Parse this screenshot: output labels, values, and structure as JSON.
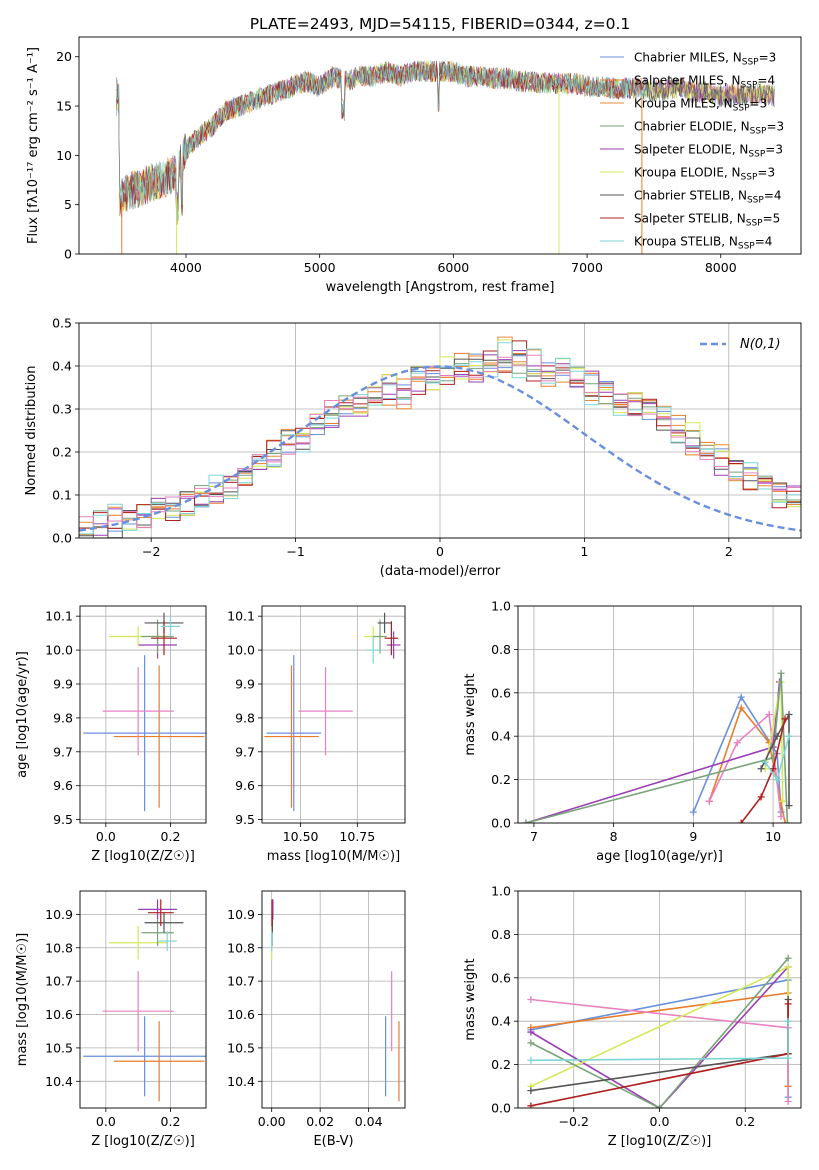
{
  "figure_title": "PLATE=2493, MJD=54115, FIBERID=0344, z=0.1",
  "colors": [
    "#6a8fdc",
    "#e87d2a",
    "#e8893a",
    "#7aa37a",
    "#9b3fb5",
    "#d4e85a",
    "#555555",
    "#b02020",
    "#7dd6d6",
    "#e882c0"
  ],
  "chart_data": [
    {
      "id": "spectrum",
      "type": "line",
      "xlabel": "wavelength [Angstrom, rest frame]",
      "ylabel": "Flux [fλ10⁻¹⁷ erg cm⁻² s⁻¹ A⁻¹]",
      "xlim": [
        3200,
        8600
      ],
      "ylim": [
        0,
        22
      ],
      "xticks": [
        4000,
        5000,
        6000,
        7000,
        8000
      ],
      "yticks": [
        0,
        5,
        10,
        15,
        20
      ],
      "legend_position": "right",
      "series": [
        {
          "name": "Chabrier MILES, N_SSP=3",
          "color": "#6a8fdc"
        },
        {
          "name": "Salpeter MILES, N_SSP=4",
          "color": "#e87d2a"
        },
        {
          "name": "Kroupa MILES, N_SSP=3",
          "color": "#e8893a"
        },
        {
          "name": "Chabrier ELODIE, N_SSP=3",
          "color": "#7aa37a"
        },
        {
          "name": "Salpeter ELODIE, N_SSP=3",
          "color": "#9b3fb5"
        },
        {
          "name": "Kroupa ELODIE, N_SSP=3",
          "color": "#d4e85a"
        },
        {
          "name": "Chabrier STELIB, N_SSP=4",
          "color": "#555555"
        },
        {
          "name": "Salpeter STELIB, N_SSP=5",
          "color": "#b02020"
        },
        {
          "name": "Kroupa STELIB, N_SSP=4",
          "color": "#7dd6d6"
        }
      ],
      "data_envelope": {
        "x": [
          3500,
          3600,
          3700,
          3800,
          3900,
          4000,
          4100,
          4200,
          4300,
          4400,
          4500,
          4600,
          4700,
          4800,
          4900,
          5000,
          5100,
          5200,
          5300,
          5400,
          5500,
          5600,
          5700,
          5800,
          5900,
          6000,
          6100,
          6200,
          6300,
          6400,
          6500,
          6600,
          6700,
          6800,
          6900,
          7000,
          7100,
          7200,
          7300,
          7400,
          7500,
          7600,
          7700,
          7800,
          7900,
          8000,
          8100,
          8200,
          8300,
          8400
        ],
        "y": [
          5.5,
          6.5,
          7,
          7.5,
          8,
          10.5,
          12,
          13,
          14.5,
          15,
          15.5,
          16,
          16.5,
          17,
          17.5,
          17,
          18,
          17.5,
          18,
          18,
          18.5,
          18,
          18.5,
          18.5,
          18.5,
          18.5,
          18,
          18,
          17.8,
          17.8,
          17.5,
          17.5,
          17.3,
          17.3,
          17.3,
          17,
          17,
          16.8,
          16.8,
          16.8,
          16.5,
          16.7,
          17,
          16.3,
          16.5,
          16,
          16.2,
          16,
          16.3,
          16
        ]
      }
    },
    {
      "id": "residuals",
      "type": "histogram",
      "xlabel": "(data-model)/error",
      "ylabel": "Normed distribution",
      "xlim": [
        -2.5,
        2.5
      ],
      "ylim": [
        0,
        0.5
      ],
      "xticks": [
        -2,
        -1,
        0,
        1,
        2
      ],
      "yticks": [
        0.0,
        0.1,
        0.2,
        0.3,
        0.4,
        0.5
      ],
      "legend": [
        {
          "name": "N(0,1)",
          "color": "#6a8fdc",
          "style": "dashed"
        }
      ],
      "bins": {
        "start": -2.5,
        "width": 0.1
      },
      "series_values": [
        [
          0.03,
          0.04,
          0.03,
          0.04,
          0.05,
          0.06,
          0.07,
          0.08,
          0.1,
          0.11,
          0.12,
          0.15,
          0.18,
          0.19,
          0.22,
          0.23,
          0.27,
          0.29,
          0.31,
          0.32,
          0.33,
          0.35,
          0.34,
          0.37,
          0.38,
          0.39,
          0.39,
          0.4,
          0.41,
          0.42,
          0.41,
          0.4,
          0.39,
          0.4,
          0.37,
          0.35,
          0.34,
          0.32,
          0.31,
          0.3,
          0.28,
          0.25,
          0.23,
          0.21,
          0.18,
          0.16,
          0.14,
          0.12,
          0.1,
          0.09
        ],
        [
          0.02,
          0.03,
          0.04,
          0.04,
          0.05,
          0.07,
          0.07,
          0.09,
          0.09,
          0.1,
          0.13,
          0.15,
          0.17,
          0.2,
          0.21,
          0.24,
          0.26,
          0.28,
          0.3,
          0.31,
          0.34,
          0.33,
          0.35,
          0.36,
          0.39,
          0.38,
          0.41,
          0.39,
          0.42,
          0.4,
          0.43,
          0.39,
          0.38,
          0.41,
          0.36,
          0.36,
          0.33,
          0.33,
          0.29,
          0.31,
          0.27,
          0.26,
          0.22,
          0.22,
          0.17,
          0.17,
          0.13,
          0.13,
          0.09,
          0.1
        ],
        [
          0.03,
          0.03,
          0.05,
          0.04,
          0.05,
          0.06,
          0.08,
          0.08,
          0.1,
          0.12,
          0.12,
          0.14,
          0.18,
          0.18,
          0.23,
          0.22,
          0.28,
          0.28,
          0.32,
          0.31,
          0.33,
          0.36,
          0.33,
          0.38,
          0.37,
          0.4,
          0.38,
          0.41,
          0.4,
          0.44,
          0.4,
          0.41,
          0.38,
          0.39,
          0.38,
          0.34,
          0.35,
          0.31,
          0.32,
          0.29,
          0.29,
          0.24,
          0.24,
          0.2,
          0.19,
          0.15,
          0.15,
          0.11,
          0.11,
          0.08
        ]
      ],
      "normal_curve": {
        "mean": 0,
        "sigma": 1
      }
    },
    {
      "id": "age_vs_Z",
      "type": "errorbar",
      "xlabel": "Z [log10(Z/Z☉)]",
      "ylabel": "age  [log10(age/yr)]",
      "xlim": [
        -0.08,
        0.31
      ],
      "ylim": [
        9.49,
        10.13
      ],
      "xticks": [
        0.0,
        0.2
      ],
      "yticks": [
        9.5,
        9.6,
        9.7,
        9.8,
        9.9,
        10.0,
        10.1
      ],
      "points": [
        {
          "x": 0.12,
          "y": 9.755,
          "xerr": 0.19,
          "yerr": 0.23,
          "color": "#6a8fdc"
        },
        {
          "x": 0.165,
          "y": 9.745,
          "xerr": 0.14,
          "yerr": 0.21,
          "color": "#e87d2a"
        },
        {
          "x": 0.1,
          "y": 9.82,
          "xerr": 0.11,
          "yerr": 0.13,
          "color": "#e882c0"
        },
        {
          "x": 0.16,
          "y": 10.015,
          "xerr": 0.06,
          "yerr": 0.04,
          "color": "#9b3fb5"
        },
        {
          "x": 0.1,
          "y": 10.04,
          "xerr": 0.09,
          "yerr": 0.03,
          "color": "#d4e85a"
        },
        {
          "x": 0.16,
          "y": 10.04,
          "xerr": 0.05,
          "yerr": 0.05,
          "color": "#7aa37a"
        },
        {
          "x": 0.18,
          "y": 10.08,
          "xerr": 0.06,
          "yerr": 0.03,
          "color": "#555555"
        },
        {
          "x": 0.18,
          "y": 10.035,
          "xerr": 0.04,
          "yerr": 0.05,
          "color": "#b02020"
        },
        {
          "x": 0.2,
          "y": 10.07,
          "xerr": 0.03,
          "yerr": 0.03,
          "color": "#7dd6d6"
        }
      ]
    },
    {
      "id": "age_vs_mass",
      "type": "errorbar",
      "xlabel": "mass [log10(M/M☉)]",
      "ylabel": "",
      "xlim": [
        10.33,
        10.96
      ],
      "ylim": [
        9.49,
        10.13
      ],
      "xticks": [
        10.5,
        10.75
      ],
      "xtick_labels": [
        "10.50",
        "10.75"
      ],
      "yticks": [
        9.5,
        9.6,
        9.7,
        9.8,
        9.9,
        10.0,
        10.1
      ],
      "points": [
        {
          "x": 10.47,
          "y": 9.755,
          "xerr": 0.12,
          "yerr": 0.23,
          "color": "#6a8fdc"
        },
        {
          "x": 10.46,
          "y": 9.745,
          "xerr": 0.12,
          "yerr": 0.21,
          "color": "#e87d2a"
        },
        {
          "x": 10.61,
          "y": 9.82,
          "xerr": 0.12,
          "yerr": 0.13,
          "color": "#e882c0"
        },
        {
          "x": 10.91,
          "y": 10.015,
          "xerr": 0.03,
          "yerr": 0.04,
          "color": "#9b3fb5"
        },
        {
          "x": 10.82,
          "y": 10.04,
          "xerr": 0.04,
          "yerr": 0.03,
          "color": "#d4e85a"
        },
        {
          "x": 10.85,
          "y": 10.04,
          "xerr": 0.03,
          "yerr": 0.05,
          "color": "#7aa37a"
        },
        {
          "x": 10.87,
          "y": 10.08,
          "xerr": 0.03,
          "yerr": 0.03,
          "color": "#555555"
        },
        {
          "x": 10.9,
          "y": 10.035,
          "xerr": 0.03,
          "yerr": 0.05,
          "color": "#b02020"
        },
        {
          "x": 10.82,
          "y": 10.0,
          "xerr": 0.03,
          "yerr": 0.04,
          "color": "#7dd6d6"
        }
      ]
    },
    {
      "id": "mass_weight_vs_age",
      "type": "line",
      "xlabel": "age  [log10(age/yr)]",
      "ylabel": "mass weight",
      "xlim": [
        6.8,
        10.35
      ],
      "ylim": [
        0,
        1
      ],
      "xticks": [
        7,
        8,
        9,
        10
      ],
      "yticks": [
        0.0,
        0.2,
        0.4,
        0.6,
        0.8,
        1.0
      ],
      "series": [
        {
          "color": "#6a8fdc",
          "x": [
            9.0,
            9.6,
            10.05,
            10.1
          ],
          "y": [
            0.05,
            0.58,
            0.32,
            0.05
          ]
        },
        {
          "color": "#e87d2a",
          "x": [
            9.2,
            9.6,
            9.95,
            10.15
          ],
          "y": [
            0.1,
            0.53,
            0.37,
            0.0
          ]
        },
        {
          "color": "#e882c0",
          "x": [
            9.2,
            9.55,
            9.95,
            10.1
          ],
          "y": [
            0.1,
            0.37,
            0.5,
            0.03
          ]
        },
        {
          "color": "#9b3fb5",
          "x": [
            6.9,
            10.0,
            10.08
          ],
          "y": [
            0.0,
            0.35,
            0.65
          ]
        },
        {
          "color": "#d4e85a",
          "x": [
            9.9,
            10.1,
            10.12
          ],
          "y": [
            0.25,
            0.65,
            0.1
          ]
        },
        {
          "color": "#7aa37a",
          "x": [
            6.9,
            10.0,
            10.1,
            10.18
          ],
          "y": [
            0.0,
            0.3,
            0.69,
            0.0
          ]
        },
        {
          "color": "#555555",
          "x": [
            9.85,
            10.05,
            10.2,
            10.2
          ],
          "y": [
            0.25,
            0.4,
            0.5,
            0.08
          ]
        },
        {
          "color": "#b02020",
          "x": [
            9.6,
            9.85,
            10.0,
            10.15
          ],
          "y": [
            0.0,
            0.12,
            0.25,
            0.48
          ]
        },
        {
          "color": "#7dd6d6",
          "x": [
            9.9,
            10.05,
            10.2
          ],
          "y": [
            0.28,
            0.2,
            0.4
          ]
        }
      ]
    },
    {
      "id": "mass_vs_Z",
      "type": "errorbar",
      "xlabel": "Z [log10(Z/Z☉)]",
      "ylabel": "mass [log10(M/M☉)]",
      "xlim": [
        -0.08,
        0.31
      ],
      "ylim": [
        10.32,
        10.97
      ],
      "xticks": [
        0.0,
        0.2
      ],
      "yticks": [
        10.4,
        10.5,
        10.6,
        10.7,
        10.8,
        10.9
      ],
      "points": [
        {
          "x": 0.12,
          "y": 10.475,
          "xerr": 0.19,
          "yerr": 0.12,
          "color": "#6a8fdc"
        },
        {
          "x": 0.165,
          "y": 10.46,
          "xerr": 0.14,
          "yerr": 0.12,
          "color": "#e87d2a"
        },
        {
          "x": 0.1,
          "y": 10.61,
          "xerr": 0.11,
          "yerr": 0.12,
          "color": "#e882c0"
        },
        {
          "x": 0.16,
          "y": 10.915,
          "xerr": 0.06,
          "yerr": 0.03,
          "color": "#9b3fb5"
        },
        {
          "x": 0.1,
          "y": 10.815,
          "xerr": 0.09,
          "yerr": 0.05,
          "color": "#d4e85a"
        },
        {
          "x": 0.16,
          "y": 10.845,
          "xerr": 0.05,
          "yerr": 0.04,
          "color": "#7aa37a"
        },
        {
          "x": 0.18,
          "y": 10.875,
          "xerr": 0.06,
          "yerr": 0.03,
          "color": "#555555"
        },
        {
          "x": 0.17,
          "y": 10.905,
          "xerr": 0.04,
          "yerr": 0.04,
          "color": "#b02020"
        },
        {
          "x": 0.19,
          "y": 10.82,
          "xerr": 0.03,
          "yerr": 0.03,
          "color": "#7dd6d6"
        }
      ]
    },
    {
      "id": "mass_vs_ebv",
      "type": "errorbar",
      "xlabel": "E(B-V)",
      "ylabel": "",
      "xlim": [
        -0.004,
        0.055
      ],
      "ylim": [
        10.32,
        10.97
      ],
      "xticks": [
        0.0,
        0.02,
        0.04
      ],
      "xtick_labels": [
        "0.00",
        "0.02",
        "0.04"
      ],
      "yticks": [
        10.4,
        10.5,
        10.6,
        10.7,
        10.8,
        10.9
      ],
      "points": [
        {
          "x": 0.047,
          "y": 10.475,
          "xerr": 0,
          "yerr": 0.12,
          "color": "#6a8fdc"
        },
        {
          "x": 0.0525,
          "y": 10.46,
          "xerr": 0,
          "yerr": 0.12,
          "color": "#e87d2a"
        },
        {
          "x": 0.0495,
          "y": 10.61,
          "xerr": 0,
          "yerr": 0.12,
          "color": "#e882c0"
        },
        {
          "x": 0.0005,
          "y": 10.915,
          "xerr": 0,
          "yerr": 0.03,
          "color": "#9b3fb5"
        },
        {
          "x": 0.0,
          "y": 10.815,
          "xerr": 0,
          "yerr": 0.05,
          "color": "#d4e85a"
        },
        {
          "x": 0.0002,
          "y": 10.845,
          "xerr": 0,
          "yerr": 0.04,
          "color": "#7aa37a"
        },
        {
          "x": 0.0003,
          "y": 10.875,
          "xerr": 0,
          "yerr": 0.03,
          "color": "#555555"
        },
        {
          "x": 0.0001,
          "y": 10.905,
          "xerr": 0,
          "yerr": 0.04,
          "color": "#b02020"
        },
        {
          "x": 0.0,
          "y": 10.82,
          "xerr": 0,
          "yerr": 0.03,
          "color": "#7dd6d6"
        }
      ]
    },
    {
      "id": "mass_weight_vs_Z",
      "type": "line",
      "xlabel": "Z [log10(Z/Z☉)]",
      "ylabel": "mass weight",
      "xlim": [
        -0.33,
        0.33
      ],
      "ylim": [
        0,
        1
      ],
      "xticks": [
        -0.2,
        0.0,
        0.2
      ],
      "yticks": [
        0.0,
        0.2,
        0.4,
        0.6,
        0.8,
        1.0
      ],
      "series": [
        {
          "color": "#6a8fdc",
          "x": [
            -0.3,
            0.3,
            0.3
          ],
          "y": [
            0.36,
            0.59,
            0.05
          ]
        },
        {
          "color": "#e87d2a",
          "x": [
            -0.3,
            0.3,
            0.3
          ],
          "y": [
            0.37,
            0.53,
            0.1
          ]
        },
        {
          "color": "#e882c0",
          "x": [
            -0.3,
            0.3,
            0.3
          ],
          "y": [
            0.5,
            0.37,
            0.03
          ]
        },
        {
          "color": "#9b3fb5",
          "x": [
            -0.3,
            0.0,
            0.3
          ],
          "y": [
            0.35,
            0.0,
            0.65
          ]
        },
        {
          "color": "#d4e85a",
          "x": [
            -0.3,
            0.3,
            0.3
          ],
          "y": [
            0.1,
            0.65,
            0.25
          ]
        },
        {
          "color": "#7aa37a",
          "x": [
            -0.3,
            0.0,
            0.3
          ],
          "y": [
            0.3,
            0.0,
            0.69
          ]
        },
        {
          "color": "#555555",
          "x": [
            -0.3,
            0.3,
            0.3
          ],
          "y": [
            0.08,
            0.25,
            0.5
          ]
        },
        {
          "color": "#b02020",
          "x": [
            -0.3,
            0.3,
            0.3
          ],
          "y": [
            0.01,
            0.25,
            0.48
          ]
        },
        {
          "color": "#7dd6d6",
          "x": [
            -0.3,
            0.3,
            0.3
          ],
          "y": [
            0.22,
            0.23,
            0.4
          ]
        }
      ]
    }
  ]
}
